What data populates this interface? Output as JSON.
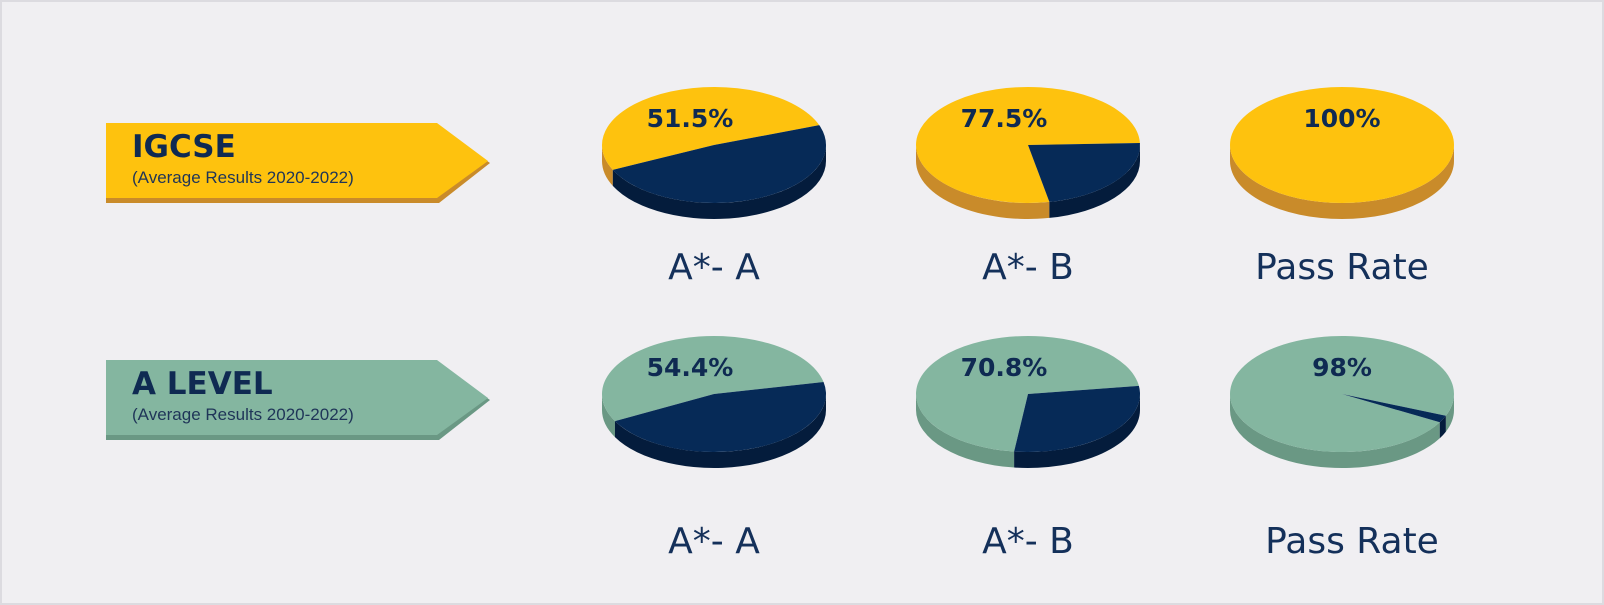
{
  "colors": {
    "igcse_fill": "#fec20e",
    "igcse_side": "#c98b2a",
    "alevel_fill": "#84b6a0",
    "alevel_side": "#6a9884",
    "navy": "#062a57",
    "navy_side": "#041c3c",
    "text": "#0f2a52"
  },
  "rows": [
    {
      "id": "igcse",
      "title": "IGCSE",
      "subtitle": "(Average Results 2020-2022)"
    },
    {
      "id": "alevel",
      "title": "A LEVEL",
      "subtitle": "(Average Results 2020-2022)"
    }
  ],
  "chart_data": [
    {
      "type": "pie",
      "group": "IGCSE",
      "category": "A*- A",
      "value_label": "51.5%",
      "values": [
        51.5,
        48.5
      ]
    },
    {
      "type": "pie",
      "group": "IGCSE",
      "category": "A*- B",
      "value_label": "77.5%",
      "values": [
        77.5,
        22.5
      ]
    },
    {
      "type": "pie",
      "group": "IGCSE",
      "category": "Pass Rate",
      "value_label": "100%",
      "values": [
        100,
        0
      ]
    },
    {
      "type": "pie",
      "group": "A LEVEL",
      "category": "A*- A",
      "value_label": "54.4%",
      "values": [
        54.4,
        45.6
      ]
    },
    {
      "type": "pie",
      "group": "A LEVEL",
      "category": "A*- B",
      "value_label": "70.8%",
      "values": [
        70.8,
        29.2
      ]
    },
    {
      "type": "pie",
      "group": "A LEVEL",
      "category": "Pass Rate",
      "value_label": "98%",
      "values": [
        98,
        2
      ]
    }
  ]
}
